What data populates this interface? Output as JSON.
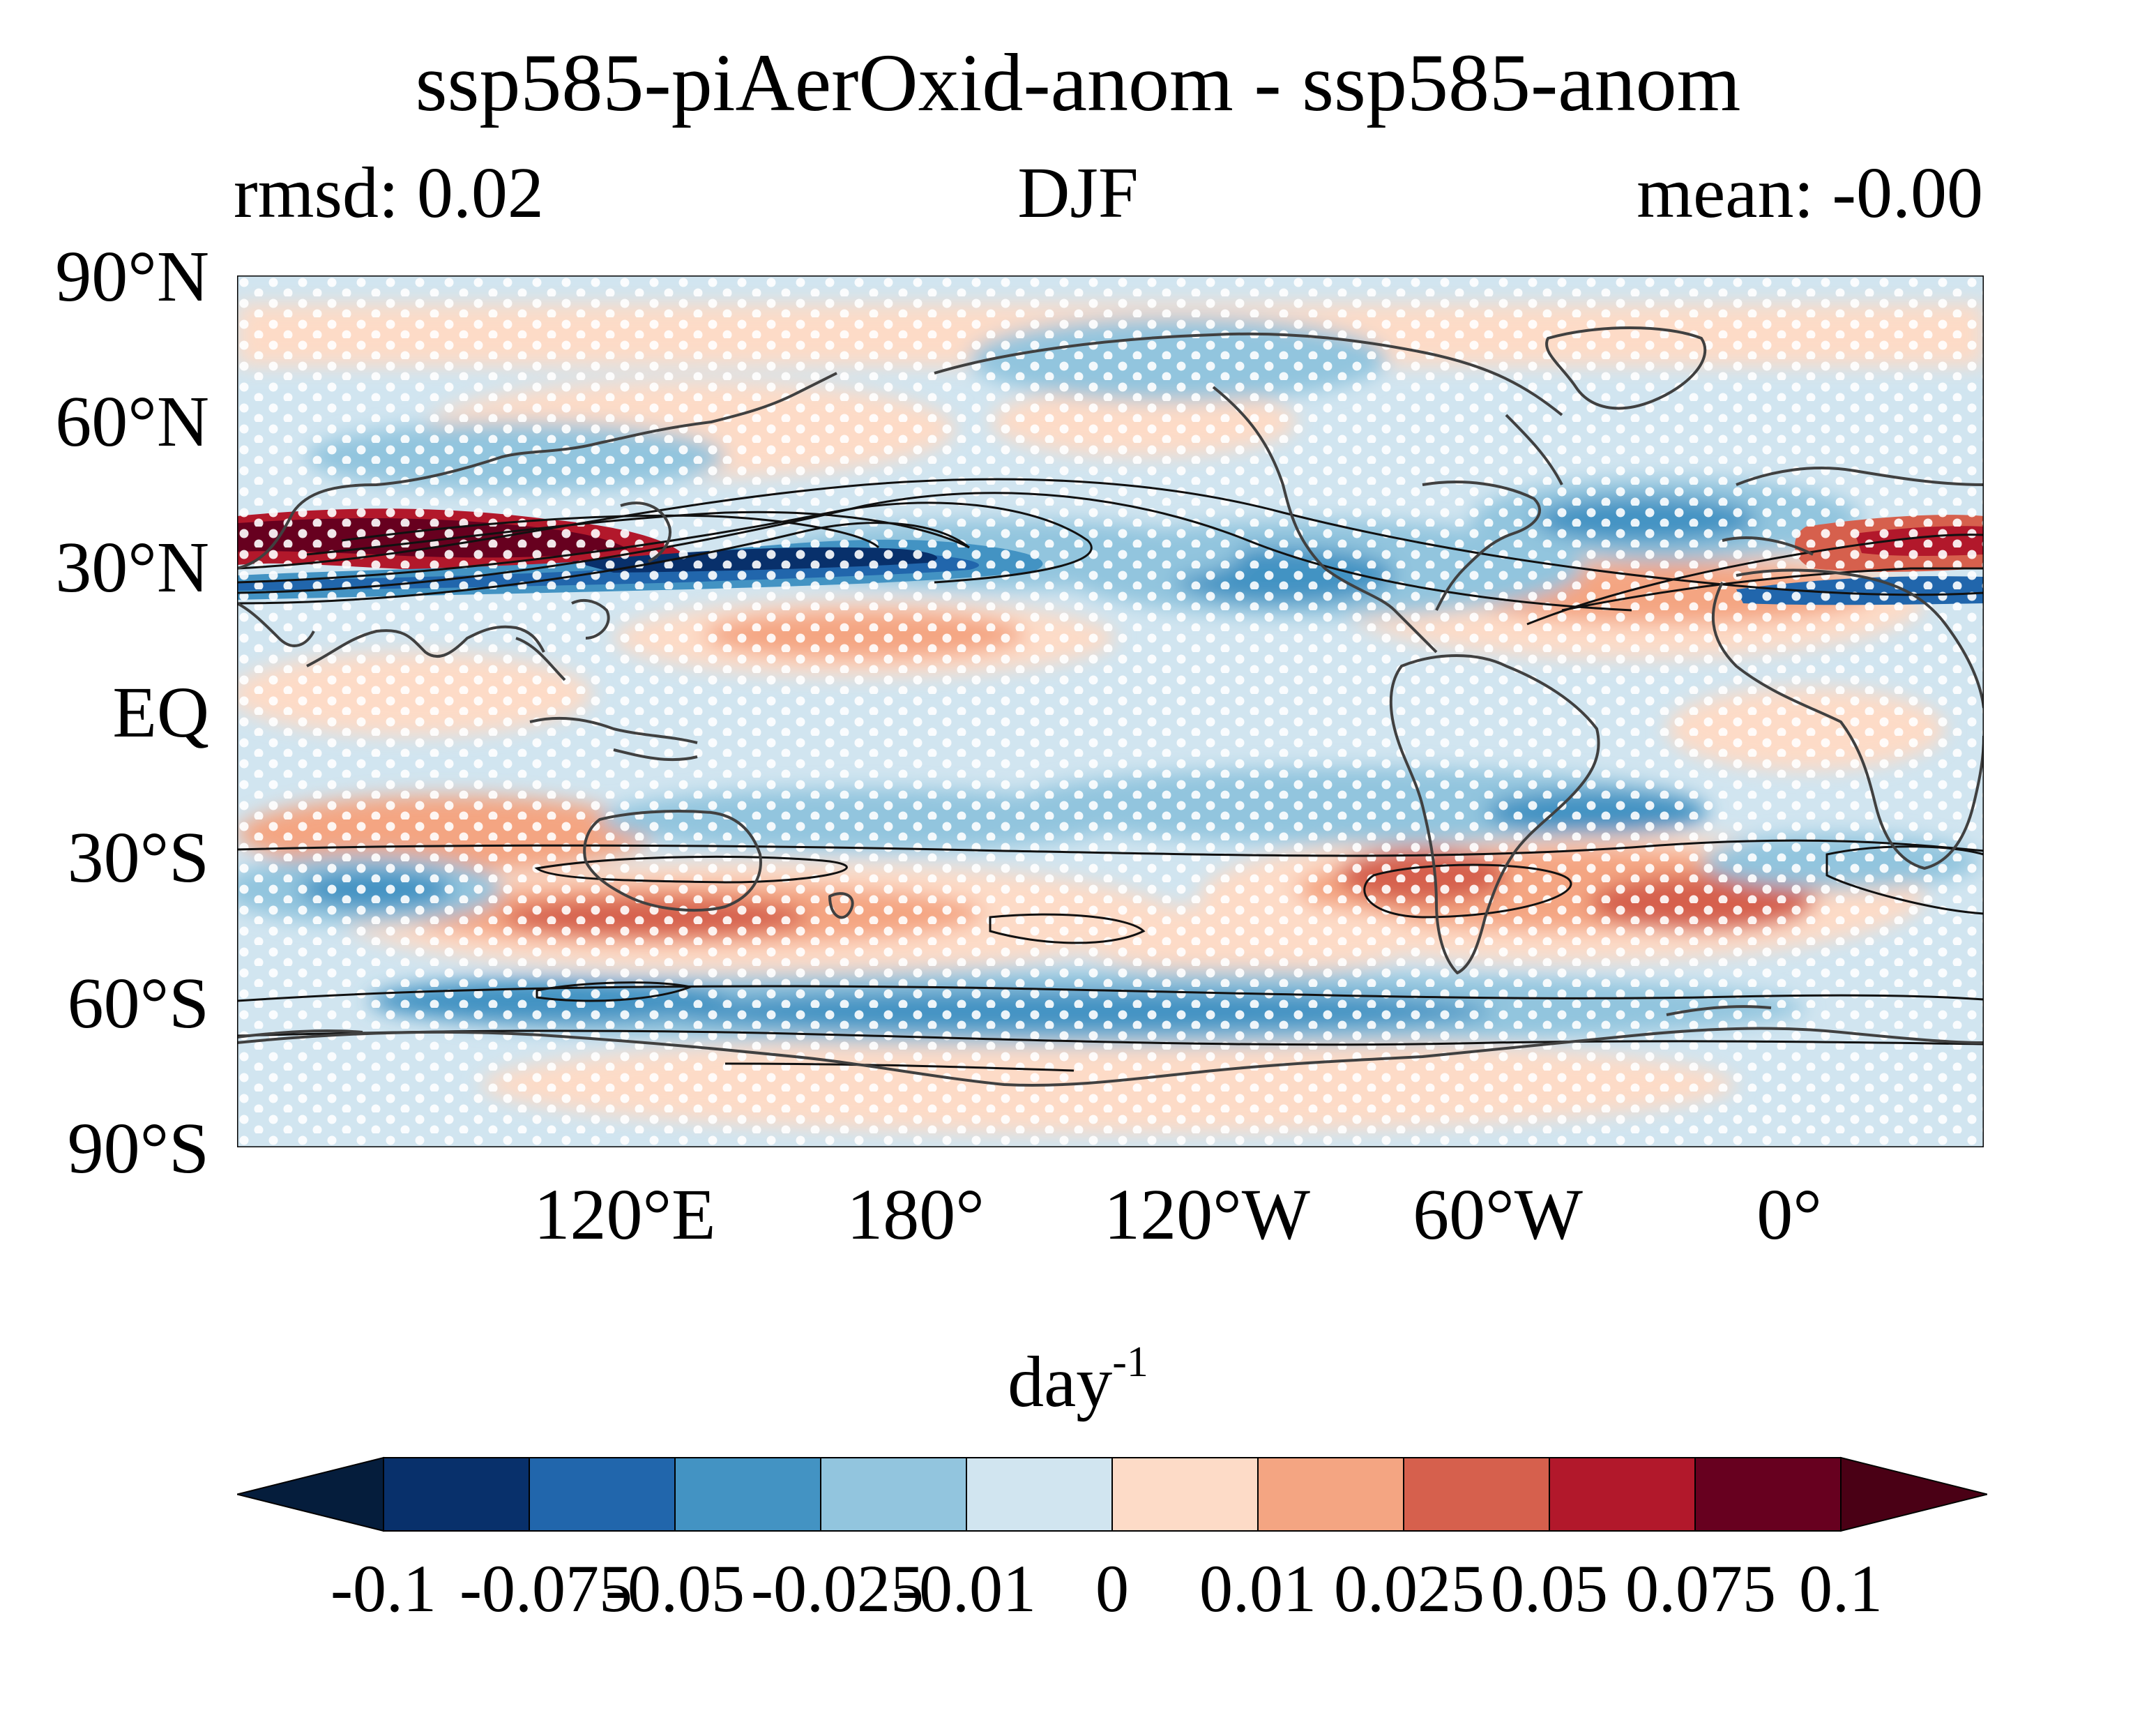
{
  "title": "ssp585-piAerOxid-anom - ssp585-anom",
  "subtitle": {
    "left": "rmsd: 0.02",
    "center": "DJF",
    "right": "mean: -0.00"
  },
  "lat_labels": [
    "90°N",
    "60°N",
    "30°N",
    "EQ",
    "30°S",
    "60°S",
    "90°S"
  ],
  "lon_labels": [
    "120°E",
    "180°",
    "120°W",
    "60°W",
    "0°"
  ],
  "colorbar": {
    "units_base": "day",
    "units_exp": "-1",
    "tick_labels": [
      "-0.1",
      "-0.075",
      "-0.05",
      "-0.025",
      "-0.01",
      "0",
      "0.01",
      "0.025",
      "0.05",
      "0.075",
      "0.1"
    ],
    "levels": [
      -0.1,
      -0.075,
      -0.05,
      -0.025,
      -0.01,
      0,
      0.01,
      0.025,
      0.05,
      0.075,
      0.1
    ],
    "colors": [
      "#08306b",
      "#2166ac",
      "#4393c3",
      "#92c5de",
      "#d1e5f0",
      "#fddbc7",
      "#f4a582",
      "#d6604d",
      "#b2182b",
      "#67001f"
    ],
    "under_color": "#051d3c",
    "over_color": "#4a0015",
    "extend": "both"
  },
  "map": {
    "projection": "plate-carree",
    "central_longitude": "30°W",
    "field": "ssp585-piAerOxid-anom - ssp585-anom",
    "stippling": "white dots",
    "contours": "black lines",
    "coastlines": "dark gray"
  }
}
